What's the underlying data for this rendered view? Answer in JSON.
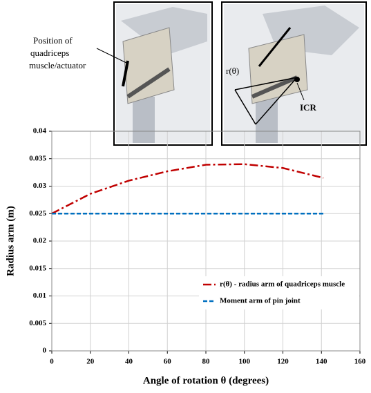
{
  "chart_data": {
    "type": "line",
    "annotations": {
      "position_lines": [
        "Position of",
        "quadriceps",
        "muscle/actuator"
      ],
      "r_label": "r(θ)",
      "icr_label": "ICR"
    },
    "xlabel": "Angle of rotation θ (degrees)",
    "ylabel": "Radius arm (m)",
    "x": [
      0,
      20,
      40,
      60,
      80,
      100,
      120,
      141
    ],
    "series": [
      {
        "name": "r(θ) - radius arm of quadriceps muscle",
        "color": "#c00000",
        "dash": "dashdot",
        "values": [
          0.025,
          0.0286,
          0.031,
          0.0327,
          0.0339,
          0.034,
          0.0333,
          0.0315
        ]
      },
      {
        "name": "Moment arm of pin joint",
        "color": "#0070c0",
        "dash": "dashed",
        "values": [
          0.025,
          0.025,
          0.025,
          0.025,
          0.025,
          0.025,
          0.025,
          0.025
        ]
      }
    ],
    "xlim": [
      0,
      160
    ],
    "xticks": [
      0,
      20,
      40,
      60,
      80,
      100,
      120,
      140,
      160
    ],
    "ylim": [
      0,
      0.04
    ],
    "yticks": [
      0,
      0.005,
      0.01,
      0.015,
      0.02,
      0.025,
      0.03,
      0.035,
      0.04
    ],
    "grid": true,
    "legend": "lower right"
  }
}
